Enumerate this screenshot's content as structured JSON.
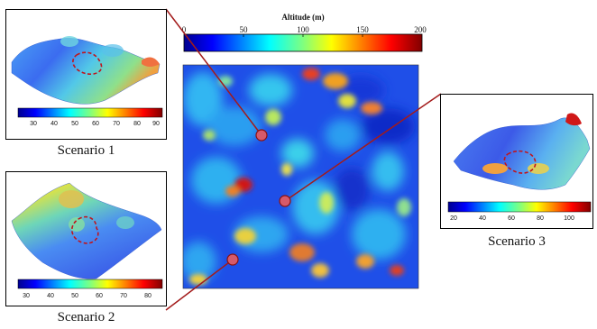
{
  "main_colorbar": {
    "title": "Altitude (m)",
    "ticks": [
      "0",
      "50",
      "100",
      "150",
      "200"
    ]
  },
  "scenarios": [
    {
      "caption": "Scenario 1",
      "ticks": [
        "30",
        "40",
        "50",
        "60",
        "70",
        "80",
        "90"
      ]
    },
    {
      "caption": "Scenario 2",
      "ticks": [
        "30",
        "40",
        "50",
        "60",
        "70",
        "80"
      ]
    },
    {
      "caption": "Scenario 3",
      "ticks": [
        "20",
        "40",
        "60",
        "80",
        "100"
      ]
    }
  ],
  "colors": {
    "connector": "#a31b1b",
    "marker_fill": "#d65a6a",
    "dashed_outline": "#c0141c",
    "jet_low": "#00008f",
    "jet_high": "#800000"
  }
}
